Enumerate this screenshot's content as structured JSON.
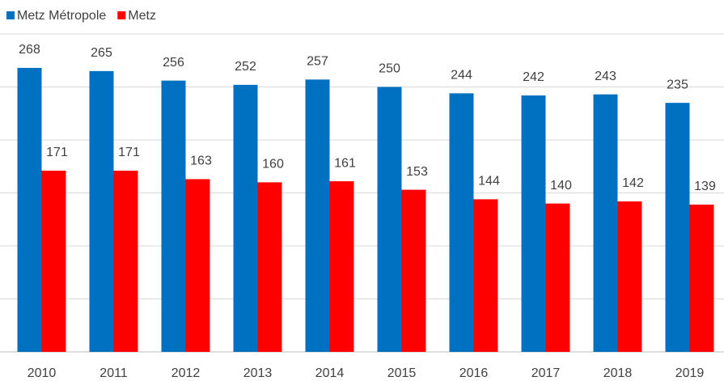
{
  "chart_data": {
    "type": "bar",
    "categories": [
      "2010",
      "2011",
      "2012",
      "2013",
      "2014",
      "2015",
      "2016",
      "2017",
      "2018",
      "2019"
    ],
    "series": [
      {
        "name": "Metz Métropole",
        "color": "#0070c0",
        "values": [
          268,
          265,
          256,
          252,
          257,
          250,
          244,
          242,
          243,
          235
        ]
      },
      {
        "name": "Metz",
        "color": "#ff0000",
        "values": [
          171,
          171,
          163,
          160,
          161,
          153,
          144,
          140,
          142,
          139
        ]
      }
    ],
    "ylim": [
      0,
      300
    ],
    "yticks": [
      0,
      50,
      100,
      150,
      200,
      250,
      300
    ],
    "grid": true,
    "legend": "top-left"
  }
}
